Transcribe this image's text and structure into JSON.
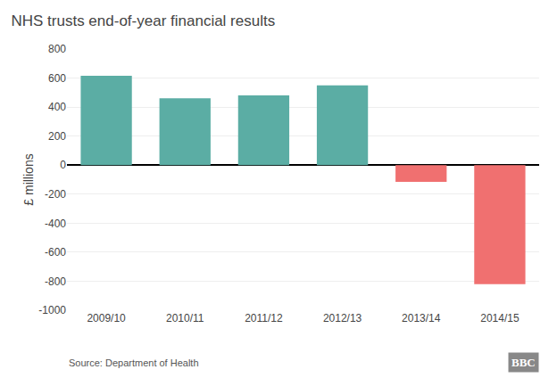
{
  "chart_data": {
    "type": "bar",
    "title": "NHS trusts end-of-year financial results",
    "y_label": "£ millions",
    "categories": [
      "2009/10",
      "2010/11",
      "2011/12",
      "2012/13",
      "2013/14",
      "2014/15"
    ],
    "values": [
      615,
      460,
      480,
      550,
      -115,
      -820
    ],
    "colors": [
      "#5BADA4",
      "#5BADA4",
      "#5BADA4",
      "#5BADA4",
      "#F07070",
      "#F07070"
    ],
    "ylim": [
      -1000,
      800
    ],
    "yticks": [
      -1000,
      -800,
      -600,
      -400,
      -200,
      0,
      200,
      400,
      600,
      800
    ],
    "grid": true,
    "annotations": [
      "Source: Department of Health",
      "BBC"
    ]
  }
}
